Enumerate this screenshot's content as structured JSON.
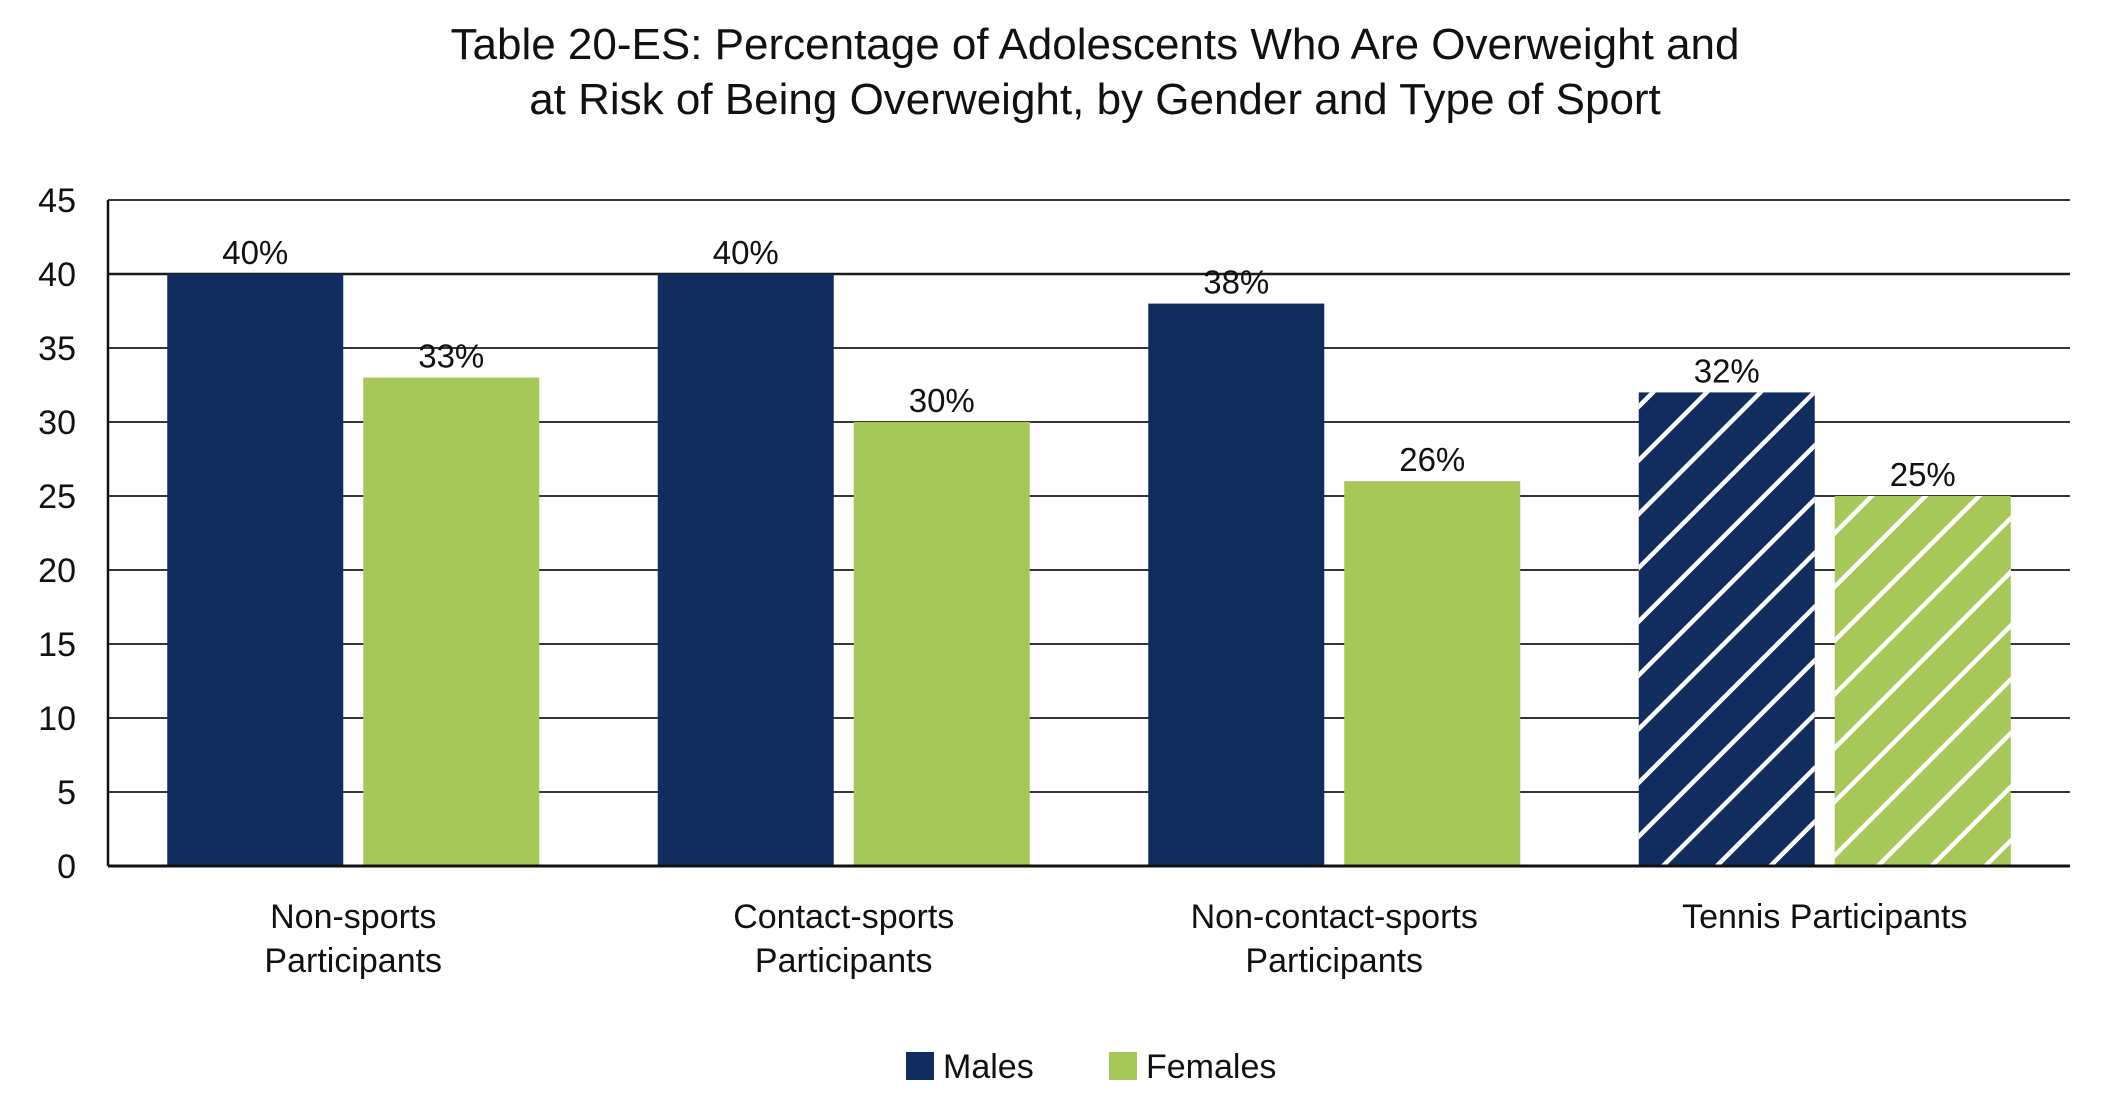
{
  "chart_data": {
    "type": "bar",
    "title_lines": [
      "Table 20-ES: Percentage of Adolescents Who Are Overweight and",
      "at Risk of Being Overweight, by Gender and Type of Sport"
    ],
    "xlabel": "",
    "ylabel": "",
    "ylim": [
      0,
      45
    ],
    "yticks": [
      "0",
      "5",
      "10",
      "15",
      "20",
      "25",
      "30",
      "35",
      "40",
      "45"
    ],
    "ytick_values": [
      0,
      5,
      10,
      15,
      20,
      25,
      30,
      35,
      40,
      45
    ],
    "grid": true,
    "legend_position": "bottom",
    "categories": [
      [
        "Non-sports",
        "Participants"
      ],
      [
        "Contact-sports",
        "Participants"
      ],
      [
        "Non-contact-sports",
        "Participants"
      ],
      [
        "Tennis Participants"
      ]
    ],
    "hatched_category": "Tennis Participants",
    "series": [
      {
        "name": "Males",
        "color": "#112d5f",
        "values": [
          40,
          40,
          38,
          32
        ],
        "labels": [
          "40%",
          "40%",
          "38%",
          "32%"
        ]
      },
      {
        "name": "Females",
        "color": "#a5c858",
        "values": [
          33,
          30,
          26,
          25
        ],
        "labels": [
          "33%",
          "30%",
          "26%",
          "25%"
        ]
      }
    ]
  }
}
